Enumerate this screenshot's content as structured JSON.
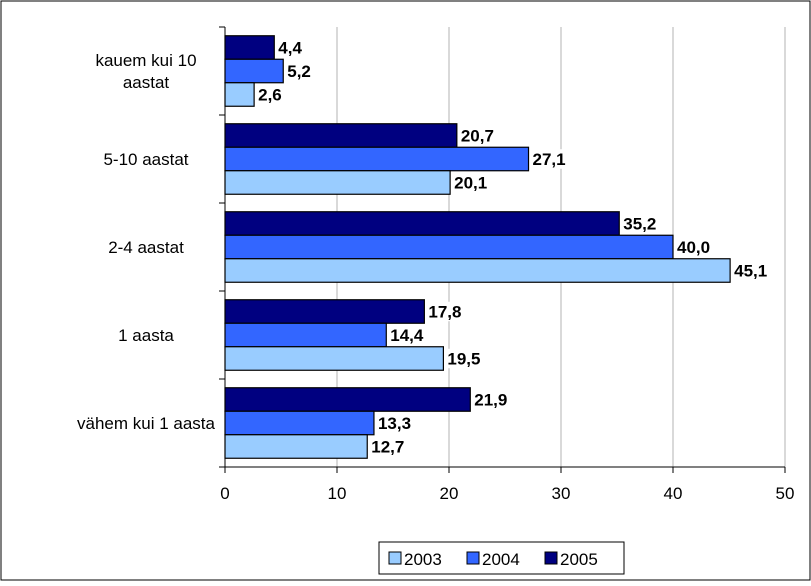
{
  "chart_data": {
    "type": "bar",
    "orientation": "horizontal",
    "categories": [
      "kauem kui 10 aastat",
      "5-10 aastat",
      "2-4 aastat",
      "1 aasta",
      "vähem kui 1 aasta"
    ],
    "category_lines": [
      [
        "kauem kui 10",
        "aastat"
      ],
      [
        "5-10 aastat"
      ],
      [
        "2-4 aastat"
      ],
      [
        "1 aasta"
      ],
      [
        "vähem kui 1 aasta"
      ]
    ],
    "series": [
      {
        "name": "2003",
        "color": "#99ccff",
        "values": [
          2.6,
          20.1,
          45.1,
          19.5,
          12.7
        ],
        "labels": [
          "2,6",
          "20,1",
          "45,1",
          "19,5",
          "12,7"
        ]
      },
      {
        "name": "2004",
        "color": "#3366ff",
        "values": [
          5.2,
          27.1,
          40.0,
          14.4,
          13.3
        ],
        "labels": [
          "5,2",
          "27,1",
          "40,0",
          "14,4",
          "13,3"
        ]
      },
      {
        "name": "2005",
        "color": "#000080",
        "values": [
          4.4,
          20.7,
          35.2,
          17.8,
          21.9
        ],
        "labels": [
          "4,4",
          "20,7",
          "35,2",
          "17,8",
          "21,9"
        ]
      }
    ],
    "xlim": [
      0,
      50
    ],
    "xticks": [
      "0",
      "10",
      "20",
      "30",
      "40",
      "50"
    ],
    "grid": true,
    "legend": "bottom",
    "title": "",
    "xlabel": "",
    "ylabel": ""
  }
}
